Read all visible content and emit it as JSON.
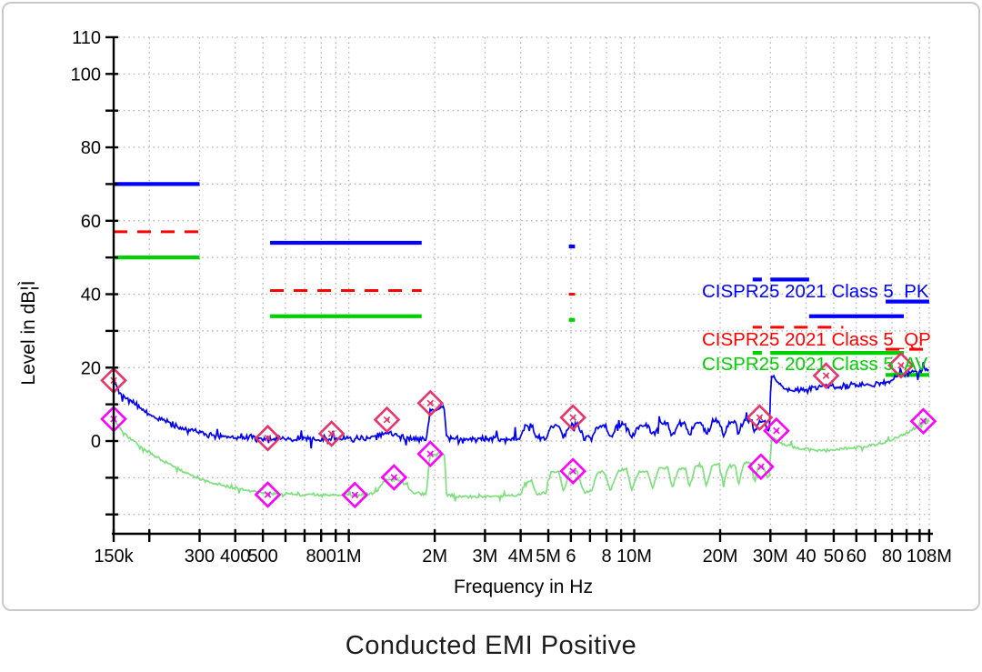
{
  "title": "Conducted EMI Positive",
  "chart_data": {
    "type": "line",
    "x_axis": {
      "label": "Frequency in Hz",
      "scale": "log",
      "min_mhz": 0.15,
      "max_mhz": 108,
      "ticks": [
        {
          "mhz": 0.15,
          "label": "150k"
        },
        {
          "mhz": 0.2,
          "label": ""
        },
        {
          "mhz": 0.3,
          "label": "300"
        },
        {
          "mhz": 0.4,
          "label": "400"
        },
        {
          "mhz": 0.5,
          "label": "500"
        },
        {
          "mhz": 0.6,
          "label": ""
        },
        {
          "mhz": 0.7,
          "label": ""
        },
        {
          "mhz": 0.8,
          "label": "800"
        },
        {
          "mhz": 0.9,
          "label": ""
        },
        {
          "mhz": 1,
          "label": "1M"
        },
        {
          "mhz": 2,
          "label": "2M"
        },
        {
          "mhz": 3,
          "label": "3M"
        },
        {
          "mhz": 4,
          "label": "4M"
        },
        {
          "mhz": 5,
          "label": "5M"
        },
        {
          "mhz": 6,
          "label": "6"
        },
        {
          "mhz": 7,
          "label": ""
        },
        {
          "mhz": 8,
          "label": "8"
        },
        {
          "mhz": 9,
          "label": ""
        },
        {
          "mhz": 10,
          "label": "10M"
        },
        {
          "mhz": 20,
          "label": "20M"
        },
        {
          "mhz": 30,
          "label": "30M"
        },
        {
          "mhz": 40,
          "label": "40"
        },
        {
          "mhz": 50,
          "label": "50"
        },
        {
          "mhz": 60,
          "label": "60"
        },
        {
          "mhz": 70,
          "label": ""
        },
        {
          "mhz": 80,
          "label": "80"
        },
        {
          "mhz": 90,
          "label": ""
        },
        {
          "mhz": 100,
          "label": ""
        },
        {
          "mhz": 108,
          "label": "108M"
        }
      ]
    },
    "y_axis": {
      "label": "Level in dB¦Ì",
      "min": -25,
      "max": 110,
      "grid_step": 10,
      "labeled_ticks": [
        110,
        100,
        80,
        60,
        40,
        20,
        0
      ]
    },
    "grid": {
      "style": "dotted",
      "color": "#b0b0b0"
    },
    "limit_lines": [
      {
        "name": "CISPR25 2021 Class 5_PK",
        "color": "#0000ff",
        "style": "solid",
        "segments": [
          {
            "from_mhz": 0.15,
            "to_mhz": 0.3,
            "level_db": 70
          },
          {
            "from_mhz": 0.53,
            "to_mhz": 1.8,
            "level_db": 54
          },
          {
            "from_mhz": 5.9,
            "to_mhz": 6.2,
            "level_db": 53
          },
          {
            "from_mhz": 26,
            "to_mhz": 28,
            "level_db": 44
          },
          {
            "from_mhz": 30,
            "to_mhz": 41,
            "level_db": 44
          },
          {
            "from_mhz": 41,
            "to_mhz": 88,
            "level_db": 34
          },
          {
            "from_mhz": 76,
            "to_mhz": 108,
            "level_db": 38
          }
        ]
      },
      {
        "name": "CISPR25 2021 Class 5_QP",
        "color": "#ff0000",
        "style": "dashed",
        "segments": [
          {
            "from_mhz": 0.15,
            "to_mhz": 0.3,
            "level_db": 57
          },
          {
            "from_mhz": 0.53,
            "to_mhz": 1.8,
            "level_db": 41
          },
          {
            "from_mhz": 5.9,
            "to_mhz": 6.2,
            "level_db": 40
          },
          {
            "from_mhz": 26,
            "to_mhz": 28,
            "level_db": 31
          },
          {
            "from_mhz": 30,
            "to_mhz": 54,
            "level_db": 31
          },
          {
            "from_mhz": 76,
            "to_mhz": 108,
            "level_db": 25
          }
        ]
      },
      {
        "name": "CISPR25 2021 Class 5_AV",
        "color": "#00cf00",
        "style": "solid",
        "segments": [
          {
            "from_mhz": 0.15,
            "to_mhz": 0.3,
            "level_db": 50
          },
          {
            "from_mhz": 0.53,
            "to_mhz": 1.8,
            "level_db": 34
          },
          {
            "from_mhz": 5.9,
            "to_mhz": 6.2,
            "level_db": 33
          },
          {
            "from_mhz": 26,
            "to_mhz": 28,
            "level_db": 24
          },
          {
            "from_mhz": 30,
            "to_mhz": 54,
            "level_db": 24
          },
          {
            "from_mhz": 41,
            "to_mhz": 88,
            "level_db": 24
          },
          {
            "from_mhz": 76,
            "to_mhz": 108,
            "level_db": 18
          }
        ]
      }
    ],
    "traces": [
      {
        "name": "Peak measurement",
        "color": "#0000f2",
        "noise_db": 1.25,
        "seed": 42,
        "anchors": [
          [
            0.15,
            16.5
          ],
          [
            0.158,
            13.5
          ],
          [
            0.17,
            11
          ],
          [
            0.19,
            8.5
          ],
          [
            0.21,
            6.5
          ],
          [
            0.24,
            4.5
          ],
          [
            0.27,
            3
          ],
          [
            0.3,
            2.2
          ],
          [
            0.35,
            1.4
          ],
          [
            0.42,
            0.9
          ],
          [
            0.5,
            0.6
          ],
          [
            0.62,
            0.5
          ],
          [
            0.8,
            0.5
          ],
          [
            1.0,
            0.6
          ],
          [
            1.2,
            0.8
          ],
          [
            1.3,
            1.8
          ],
          [
            1.38,
            2.6
          ],
          [
            1.5,
            0.9
          ],
          [
            1.65,
            0.5
          ],
          [
            1.87,
            0.8
          ],
          [
            1.92,
            7.8
          ],
          [
            2.0,
            8.6
          ],
          [
            2.1,
            9.2
          ],
          [
            2.16,
            8.4
          ],
          [
            2.2,
            1.2
          ],
          [
            2.4,
            0.4
          ],
          [
            2.8,
            0.4
          ],
          [
            3.2,
            0.8
          ],
          [
            3.6,
            0.5
          ],
          [
            4.0,
            0.7
          ],
          [
            4.15,
            4.4
          ],
          [
            4.35,
            4.6
          ],
          [
            4.55,
            0.9
          ],
          [
            4.9,
            0.8
          ],
          [
            5.1,
            4.0
          ],
          [
            5.45,
            4.2
          ],
          [
            5.65,
            0.9
          ],
          [
            5.95,
            4.2
          ],
          [
            6.3,
            4.6
          ],
          [
            6.65,
            1.1
          ],
          [
            7.1,
            1.0
          ],
          [
            7.4,
            4.0
          ],
          [
            7.85,
            4.2
          ],
          [
            8.25,
            1.1
          ],
          [
            8.8,
            4.2
          ],
          [
            9.4,
            4.5
          ],
          [
            9.8,
            1.1
          ],
          [
            10.4,
            4.0
          ],
          [
            11.1,
            4.2
          ],
          [
            11.6,
            1.2
          ],
          [
            12.2,
            4.8
          ],
          [
            13.1,
            5.0
          ],
          [
            13.6,
            1.3
          ],
          [
            14.3,
            4.5
          ],
          [
            15.1,
            4.6
          ],
          [
            15.6,
            1.3
          ],
          [
            16.4,
            5.0
          ],
          [
            17.3,
            5.1
          ],
          [
            17.9,
            1.5
          ],
          [
            18.8,
            5.3
          ],
          [
            19.9,
            5.4
          ],
          [
            20.5,
            1.6
          ],
          [
            21.5,
            5.0
          ],
          [
            22.6,
            5.2
          ],
          [
            23.2,
            1.6
          ],
          [
            24.2,
            5.6
          ],
          [
            25.6,
            5.8
          ],
          [
            26.4,
            2.2
          ],
          [
            27.3,
            5.6
          ],
          [
            28.6,
            5.0
          ],
          [
            29.2,
            3.2
          ],
          [
            29.95,
            3.5
          ],
          [
            30.1,
            17.2
          ],
          [
            30.6,
            18.0
          ],
          [
            31.2,
            16.6
          ],
          [
            32.5,
            15.4
          ],
          [
            34,
            14.2
          ],
          [
            36,
            13.8
          ],
          [
            38,
            14.0
          ],
          [
            40,
            14.2
          ],
          [
            43,
            14.4
          ],
          [
            47,
            15.0
          ],
          [
            50,
            14.7
          ],
          [
            55,
            15.0
          ],
          [
            60,
            15.2
          ],
          [
            65,
            15.4
          ],
          [
            70,
            15.3
          ],
          [
            75,
            15.8
          ],
          [
            80,
            16.6
          ],
          [
            84,
            17.8
          ],
          [
            88,
            18.4
          ],
          [
            92,
            18.2
          ],
          [
            96,
            19.2
          ],
          [
            100,
            19.0
          ],
          [
            104,
            19.6
          ],
          [
            108,
            19.2
          ]
        ],
        "markers": {
          "color": "#e8346a",
          "shape": "diamond",
          "points": [
            [
              0.15,
              16.5
            ],
            [
              0.52,
              0.8
            ],
            [
              0.87,
              2.0
            ],
            [
              1.36,
              5.8
            ],
            [
              1.93,
              10.3
            ],
            [
              6.1,
              6.4
            ],
            [
              27.5,
              6.4
            ],
            [
              47,
              17.8
            ],
            [
              86,
              20.6
            ]
          ]
        }
      },
      {
        "name": "Average measurement",
        "color": "#7de07d",
        "noise_db": 0.6,
        "seed": 1337,
        "anchors": [
          [
            0.15,
            6.0
          ],
          [
            0.158,
            3.5
          ],
          [
            0.17,
            1.0
          ],
          [
            0.19,
            -2.0
          ],
          [
            0.22,
            -5.0
          ],
          [
            0.25,
            -7.5
          ],
          [
            0.3,
            -10.2
          ],
          [
            0.36,
            -12.2
          ],
          [
            0.45,
            -13.6
          ],
          [
            0.55,
            -14.4
          ],
          [
            0.7,
            -14.7
          ],
          [
            0.9,
            -14.8
          ],
          [
            1.1,
            -14.7
          ],
          [
            1.25,
            -13.8
          ],
          [
            1.33,
            -10.8
          ],
          [
            1.45,
            -10.2
          ],
          [
            1.55,
            -11.2
          ],
          [
            1.7,
            -14.4
          ],
          [
            1.87,
            -14.2
          ],
          [
            1.92,
            -4.2
          ],
          [
            2.0,
            -3.7
          ],
          [
            2.1,
            -3.4
          ],
          [
            2.16,
            -4.0
          ],
          [
            2.2,
            -14.6
          ],
          [
            2.5,
            -15.2
          ],
          [
            3.0,
            -15.0
          ],
          [
            3.6,
            -14.8
          ],
          [
            4.0,
            -14.6
          ],
          [
            4.15,
            -11.2
          ],
          [
            4.35,
            -11.0
          ],
          [
            4.55,
            -14.4
          ],
          [
            4.9,
            -14.2
          ],
          [
            5.1,
            -8.6
          ],
          [
            5.45,
            -8.4
          ],
          [
            5.65,
            -14.0
          ],
          [
            5.95,
            -8.4
          ],
          [
            6.3,
            -8.0
          ],
          [
            6.65,
            -13.8
          ],
          [
            7.1,
            -13.6
          ],
          [
            7.4,
            -8.6
          ],
          [
            7.85,
            -8.4
          ],
          [
            8.25,
            -13.5
          ],
          [
            8.8,
            -8.0
          ],
          [
            9.4,
            -7.8
          ],
          [
            9.8,
            -13.2
          ],
          [
            10.4,
            -8.2
          ],
          [
            11.1,
            -8.0
          ],
          [
            11.6,
            -13.0
          ],
          [
            12.2,
            -7.4
          ],
          [
            13.1,
            -7.0
          ],
          [
            13.6,
            -12.8
          ],
          [
            14.3,
            -7.6
          ],
          [
            15.1,
            -7.4
          ],
          [
            15.6,
            -12.6
          ],
          [
            16.4,
            -7.0
          ],
          [
            17.3,
            -6.9
          ],
          [
            17.9,
            -12.2
          ],
          [
            18.8,
            -6.6
          ],
          [
            19.9,
            -6.4
          ],
          [
            20.5,
            -12.0
          ],
          [
            21.5,
            -6.8
          ],
          [
            22.6,
            -6.6
          ],
          [
            23.2,
            -11.8
          ],
          [
            24.2,
            -6.0
          ],
          [
            25.6,
            -5.8
          ],
          [
            26.4,
            -11.2
          ],
          [
            27.3,
            -6.6
          ],
          [
            28.6,
            -7.2
          ],
          [
            29.2,
            -10.0
          ],
          [
            29.95,
            -9.0
          ],
          [
            30.1,
            0.6
          ],
          [
            30.7,
            1.0
          ],
          [
            31.5,
            0.4
          ],
          [
            33,
            -0.6
          ],
          [
            35,
            -1.4
          ],
          [
            38,
            -2.0
          ],
          [
            40,
            -2.2
          ],
          [
            44,
            -2.6
          ],
          [
            48,
            -2.4
          ],
          [
            52,
            -2.2
          ],
          [
            56,
            -2.0
          ],
          [
            60,
            -1.8
          ],
          [
            64,
            -1.6
          ],
          [
            68,
            -1.2
          ],
          [
            72,
            -0.8
          ],
          [
            76,
            -0.4
          ],
          [
            80,
            0.4
          ],
          [
            84,
            1.2
          ],
          [
            88,
            2.0
          ],
          [
            92,
            2.6
          ],
          [
            96,
            3.4
          ],
          [
            100,
            4.2
          ],
          [
            104,
            5.0
          ],
          [
            108,
            4.6
          ]
        ],
        "markers": {
          "color": "#ff00ff",
          "shape": "diamond",
          "points": [
            [
              0.15,
              6.0
            ],
            [
              0.52,
              -14.6
            ],
            [
              1.05,
              -14.7
            ],
            [
              1.44,
              -9.9
            ],
            [
              1.93,
              -3.5
            ],
            [
              6.1,
              -8.2
            ],
            [
              27.8,
              -7.0
            ],
            [
              31.5,
              2.8
            ],
            [
              103,
              5.4
            ]
          ]
        }
      }
    ],
    "legend": [
      {
        "text": "CISPR25 2021 Class 5_PK",
        "color": "#0000ff"
      },
      {
        "text": "CISPR25 2021 Class 5_QP",
        "color": "#ff0000"
      },
      {
        "text": "CISPR25 2021 Class 5_AV",
        "color": "#00cf00"
      }
    ]
  }
}
